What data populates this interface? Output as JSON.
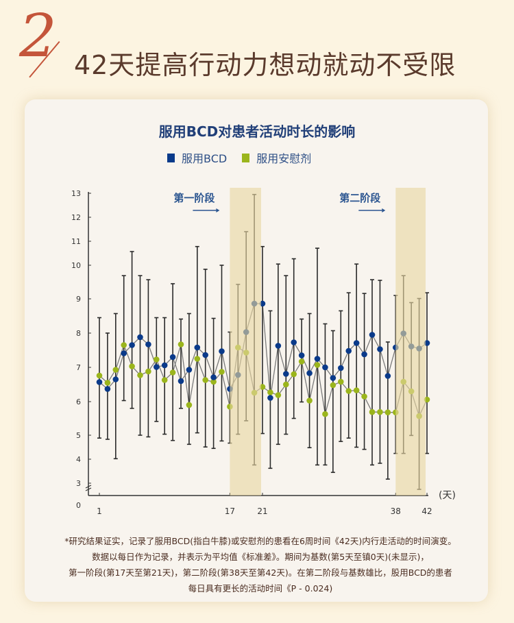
{
  "header": {
    "number": "2",
    "title": "42天提高行动力想动就动不受限"
  },
  "chart_data": {
    "type": "line",
    "title": "服用BCD对患者活动时长的影响",
    "xlabel": "(天)",
    "ylabel": "",
    "x": [
      1,
      2,
      3,
      4,
      5,
      6,
      7,
      8,
      9,
      10,
      11,
      12,
      13,
      14,
      15,
      16,
      17,
      18,
      19,
      20,
      21,
      22,
      23,
      24,
      25,
      26,
      27,
      28,
      29,
      30,
      31,
      32,
      33,
      34,
      35,
      36,
      37,
      38,
      39,
      40,
      41,
      42
    ],
    "x_tick_labels": [
      "1",
      "17",
      "21",
      "38",
      "42"
    ],
    "x_tick_values": [
      1,
      17,
      21,
      38,
      42
    ],
    "y_ticks": [
      3,
      4,
      5,
      6,
      7,
      8,
      9,
      10,
      11,
      12,
      13
    ],
    "y_zero_label": "0",
    "ylim": [
      3,
      13
    ],
    "axis_break": true,
    "legend_position": "top-center",
    "phases": [
      {
        "label": "第一阶段",
        "start": 17,
        "end": 21
      },
      {
        "label": "第二阶段",
        "start": 38,
        "end": 42
      }
    ],
    "series": [
      {
        "name": "服用BCD",
        "color": "#0a3a8a",
        "values": [
          6.57,
          6.37,
          6.65,
          7.41,
          7.65,
          7.88,
          7.67,
          7.01,
          7.06,
          7.3,
          6.6,
          6.93,
          7.58,
          7.36,
          6.71,
          7.47,
          6.37,
          6.78,
          8.03,
          8.86,
          8.86,
          6.11,
          7.63,
          6.81,
          7.73,
          7.35,
          6.83,
          7.25,
          7.0,
          6.69,
          6.98,
          7.48,
          7.71,
          7.38,
          7.95,
          7.53,
          6.75,
          7.58,
          7.99,
          7.61,
          7.55,
          7.71
        ]
      },
      {
        "name": "服用安慰剂",
        "color": "#9bb51c",
        "values": [
          6.76,
          6.55,
          6.93,
          7.65,
          7.03,
          6.77,
          6.88,
          7.23,
          6.63,
          6.85,
          7.67,
          5.9,
          7.25,
          6.63,
          6.58,
          6.87,
          5.85,
          7.58,
          7.43,
          6.26,
          6.43,
          6.27,
          6.19,
          6.5,
          6.8,
          7.17,
          6.03,
          7.07,
          5.63,
          6.48,
          6.58,
          6.31,
          6.33,
          6.15,
          5.69,
          5.69,
          5.68,
          5.68,
          6.58,
          6.3,
          5.57,
          6.06
        ]
      }
    ],
    "error_bars": {
      "upper": [
        8.45,
        8.0,
        8.57,
        9.69,
        10.57,
        9.69,
        9.57,
        8.45,
        8.45,
        9.45,
        8.41,
        8.57,
        10.78,
        9.88,
        8.43,
        10.0,
        8.03,
        9.43,
        11.4,
        12.95,
        10.78,
        8.65,
        10.05,
        9.69,
        10.27,
        8.41,
        8.57,
        10.71,
        8.27,
        8.07,
        8.65,
        9.18,
        10.05,
        9.16,
        9.57,
        9.55,
        7.74,
        9.1,
        9.69,
        8.89,
        9.01,
        9.18
      ],
      "lower": [
        4.88,
        4.83,
        4.02,
        6.03,
        5.8,
        5.0,
        4.93,
        5.41,
        5.03,
        4.78,
        5.8,
        4.62,
        5.07,
        4.51,
        4.45,
        4.76,
        4.67,
        5.03,
        5.43,
        3.76,
        5.05,
        3.62,
        4.62,
        5.03,
        5.5,
        5.99,
        4.48,
        3.76,
        3.76,
        3.45,
        4.74,
        4.88,
        4.5,
        4.41,
        3.76,
        3.83,
        3.17,
        4.24,
        4.24,
        4.99,
        2.75,
        4.24
      ]
    }
  },
  "footnote": [
    "*研究结果证实，记录了服用BCD(指白牛膝)或安慰剂的患看在6周时间《42天)内行走活动的时间演变。",
    "数据以每日作为记录，并表示为平均值《标准差》。期间为基数(第5天至镇0天)(未显示)，",
    "第一阶段(第17天至第21天)，第二阶段(第38天至第42天)。在第二阶段与基数雄比，股用BCD的患者",
    "每日具有更长的活动时间《P - 0.024)"
  ]
}
